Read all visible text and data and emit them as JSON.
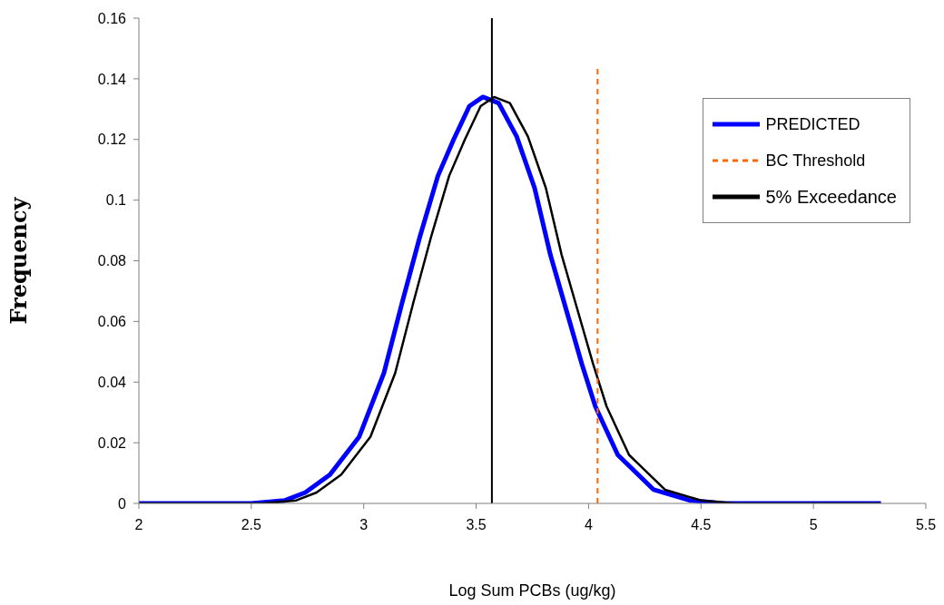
{
  "chart_data": {
    "type": "line",
    "xlabel": "Log Sum PCBs (ug/kg)",
    "ylabel": "Frequency",
    "xlim": [
      2,
      5.5
    ],
    "xticks": [
      2,
      2.5,
      3,
      3.5,
      4,
      4.5,
      5,
      5.5
    ],
    "ylim": [
      0,
      0.16
    ],
    "yticks": [
      0,
      0.02,
      0.04,
      0.06,
      0.08,
      0.1,
      0.12,
      0.14,
      0.16
    ],
    "legend": "top right",
    "marker": "none",
    "series": [
      {
        "name": "PREDICTED",
        "color": "#0000ff",
        "line_style": "solid",
        "x": [
          2,
          2.5,
          2.65,
          2.74,
          2.85,
          2.98,
          3.09,
          3.17,
          3.25,
          3.33,
          3.4,
          3.47,
          3.53,
          3.6,
          3.68,
          3.76,
          3.83,
          3.9,
          3.97,
          4.03,
          4.13,
          4.29,
          4.45,
          4.6,
          5.3
        ],
        "values": [
          0,
          0,
          0.001,
          0.0036,
          0.0095,
          0.022,
          0.043,
          0.066,
          0.088,
          0.108,
          0.12,
          0.131,
          0.134,
          0.132,
          0.121,
          0.104,
          0.082,
          0.064,
          0.046,
          0.032,
          0.016,
          0.0045,
          0.001,
          0,
          0
        ]
      },
      {
        "name": "5% Exceedance",
        "color": "#000000",
        "line_style": "solid",
        "x": [
          2,
          2.55,
          2.7,
          2.79,
          2.9,
          3.03,
          3.14,
          3.22,
          3.3,
          3.38,
          3.45,
          3.52,
          3.58,
          3.65,
          3.73,
          3.81,
          3.88,
          3.95,
          4.02,
          4.08,
          4.18,
          4.34,
          4.5,
          4.65,
          5.3
        ],
        "values": [
          0,
          0,
          0.001,
          0.0036,
          0.0095,
          0.022,
          0.043,
          0.066,
          0.088,
          0.108,
          0.12,
          0.131,
          0.134,
          0.132,
          0.121,
          0.104,
          0.082,
          0.064,
          0.046,
          0.032,
          0.016,
          0.0045,
          0.001,
          0,
          0
        ]
      },
      {
        "name": "BC Threshold",
        "color": "#ff6600",
        "line_style": "dashed",
        "x": [
          4.04,
          4.04
        ],
        "values": [
          0,
          0.144
        ]
      }
    ],
    "ref_lines": [
      {
        "axis": "x",
        "value": 3.57,
        "color": "#000000",
        "line_style": "solid"
      }
    ]
  }
}
